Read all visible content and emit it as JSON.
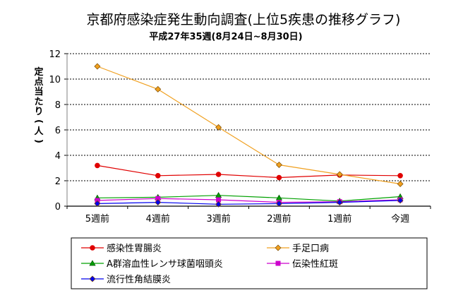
{
  "chart_data": {
    "type": "line",
    "title": "京都府感染症発生動向調査(上位5疾患の推移グラフ)",
    "subtitle": "平成27年35週(8月24日~8月30日)",
    "ylabel": "定点当たり(人)",
    "xlabel": "",
    "categories": [
      "5週前",
      "4週前",
      "3週前",
      "2週前",
      "1週前",
      "今週"
    ],
    "ylim": [
      0,
      12
    ],
    "yticks": [
      0,
      2,
      4,
      6,
      8,
      10,
      12
    ],
    "grid": true,
    "legend_position": "bottom",
    "series": [
      {
        "name": "感染性胃腸炎",
        "color": "#e00000",
        "marker": "circle",
        "values": [
          3.2,
          2.4,
          2.5,
          2.25,
          2.45,
          2.4
        ]
      },
      {
        "name": "手足口病",
        "color": "#f0a020",
        "marker": "diamond",
        "values": [
          11.0,
          9.2,
          6.2,
          3.25,
          2.5,
          1.75
        ]
      },
      {
        "name": "A群溶血性レンサ球菌咽頭炎",
        "color": "#00a000",
        "marker": "triangle",
        "values": [
          0.65,
          0.7,
          0.85,
          0.65,
          0.4,
          0.75
        ]
      },
      {
        "name": "伝染性紅斑",
        "color": "#cc00cc",
        "marker": "square",
        "values": [
          0.45,
          0.6,
          0.5,
          0.3,
          0.35,
          0.5
        ]
      },
      {
        "name": "流行性角結膜炎",
        "color": "#0000ee",
        "marker": "diamond",
        "values": [
          0.2,
          0.3,
          0.15,
          0.2,
          0.3,
          0.45
        ]
      }
    ]
  }
}
